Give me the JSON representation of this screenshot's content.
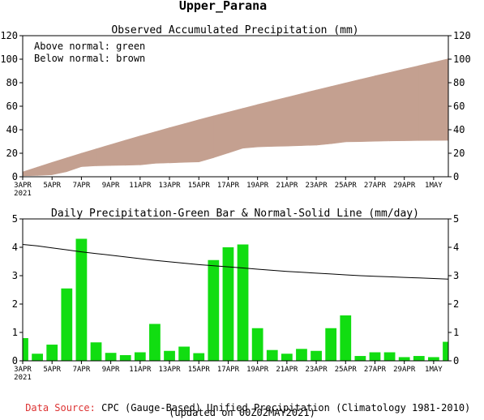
{
  "page_title": "Upper_Parana",
  "colors": {
    "below_normal": "#c4a090",
    "above_normal": "#00cc00",
    "daily_bar": "#11dd11",
    "normal_line": "#000000",
    "source_label": "#dd3333"
  },
  "chart_data": [
    {
      "type": "area",
      "title": "Observed Accumulated Precipitation (mm)",
      "legend": {
        "placement": "top-left",
        "lines": [
          "Above normal: green",
          "Below normal: brown"
        ]
      },
      "ylim": [
        0,
        120
      ],
      "yticks": [
        0,
        20,
        40,
        60,
        80,
        100,
        120
      ],
      "x_tick_labels": [
        "3APR",
        "5APR",
        "7APR",
        "9APR",
        "11APR",
        "13APR",
        "15APR",
        "17APR",
        "19APR",
        "21APR",
        "23APR",
        "25APR",
        "27APR",
        "29APR",
        "1MAY"
      ],
      "x_year_label": "2021",
      "x": [
        "3APR",
        "4APR",
        "5APR",
        "6APR",
        "7APR",
        "8APR",
        "9APR",
        "10APR",
        "11APR",
        "12APR",
        "13APR",
        "14APR",
        "15APR",
        "16APR",
        "17APR",
        "18APR",
        "19APR",
        "20APR",
        "21APR",
        "22APR",
        "23APR",
        "24APR",
        "25APR",
        "26APR",
        "27APR",
        "28APR",
        "29APR",
        "30APR",
        "1MAY",
        "2MAY"
      ],
      "series": [
        {
          "name": "Observed",
          "values": [
            0.8,
            1.1,
            1.7,
            4.3,
            8.6,
            9.3,
            9.6,
            9.8,
            10.1,
            11.4,
            11.8,
            12.3,
            12.6,
            16.2,
            20.2,
            24.3,
            25.4,
            25.8,
            26.1,
            26.5,
            26.9,
            28.1,
            29.7,
            29.9,
            30.2,
            30.5,
            30.6,
            30.8,
            30.9,
            31.0
          ]
        },
        {
          "name": "Normal",
          "values": [
            4.1,
            8.2,
            12.2,
            16.1,
            20.0,
            23.7,
            27.4,
            31.1,
            34.7,
            38.2,
            41.7,
            45.1,
            48.5,
            51.8,
            55.0,
            58.2,
            61.4,
            64.5,
            67.6,
            70.7,
            73.8,
            76.8,
            79.8,
            82.8,
            85.8,
            88.7,
            91.6,
            94.5,
            97.4,
            100.3
          ]
        }
      ]
    },
    {
      "type": "bar",
      "title": "Daily Precipitation-Green Bar & Normal-Solid Line (mm/day)",
      "ylim": [
        0,
        5
      ],
      "yticks": [
        0,
        1,
        2,
        3,
        4,
        5
      ],
      "x_tick_labels": [
        "3APR",
        "5APR",
        "7APR",
        "9APR",
        "11APR",
        "13APR",
        "15APR",
        "17APR",
        "19APR",
        "21APR",
        "23APR",
        "25APR",
        "27APR",
        "29APR",
        "1MAY"
      ],
      "x_year_label": "2021",
      "categories": [
        "3APR",
        "4APR",
        "5APR",
        "6APR",
        "7APR",
        "8APR",
        "9APR",
        "10APR",
        "11APR",
        "12APR",
        "13APR",
        "14APR",
        "15APR",
        "16APR",
        "17APR",
        "18APR",
        "19APR",
        "20APR",
        "21APR",
        "22APR",
        "23APR",
        "24APR",
        "25APR",
        "26APR",
        "27APR",
        "28APR",
        "29APR",
        "30APR",
        "1MAY",
        "2MAY"
      ],
      "series": [
        {
          "name": "Daily Precipitation",
          "values": [
            0.8,
            0.25,
            0.57,
            2.55,
            4.3,
            0.65,
            0.28,
            0.2,
            0.3,
            1.3,
            0.35,
            0.5,
            0.27,
            3.55,
            4.0,
            4.1,
            1.15,
            0.38,
            0.25,
            0.42,
            0.35,
            1.15,
            1.6,
            0.17,
            0.3,
            0.3,
            0.13,
            0.17,
            0.13,
            0.67
          ]
        },
        {
          "name": "Normal",
          "values": [
            4.1,
            4.05,
            3.98,
            3.91,
            3.84,
            3.78,
            3.72,
            3.66,
            3.6,
            3.54,
            3.49,
            3.44,
            3.39,
            3.35,
            3.31,
            3.27,
            3.23,
            3.19,
            3.15,
            3.12,
            3.09,
            3.06,
            3.03,
            3.0,
            2.98,
            2.96,
            2.94,
            2.92,
            2.9,
            2.88
          ]
        }
      ]
    }
  ],
  "footer": {
    "source_label": "Data Source:",
    "source_text": " CPC (Gauge-Based) Unified Precipitation (Climatology 1981-2010)",
    "updated_text": "(updated on 00Z02MAY2021)"
  }
}
